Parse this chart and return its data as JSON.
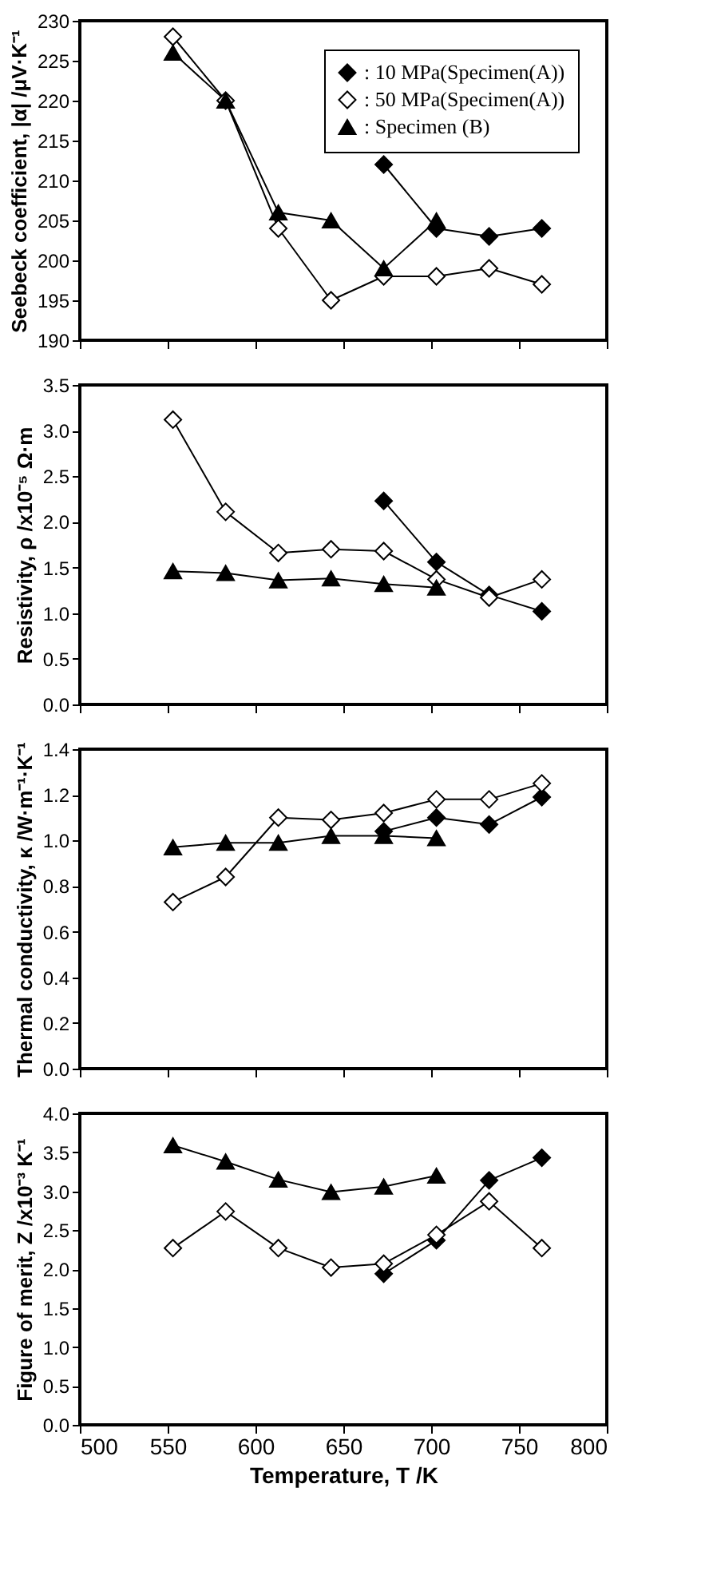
{
  "chart_data": [
    {
      "type": "line",
      "ylabel": "Seebeck coefficient, |α| /μV·K⁻¹",
      "xlim": [
        500,
        800
      ],
      "xticks": [
        500,
        550,
        600,
        650,
        700,
        750,
        800
      ],
      "ylim": [
        190,
        230
      ],
      "yticks": [
        190,
        195,
        200,
        205,
        210,
        215,
        220,
        225,
        230
      ],
      "tick_labels": "y",
      "grid": false,
      "legend": "top right",
      "line_style": "solid",
      "series": [
        {
          "name": ": 10 MPa(Specimen(A))",
          "color": "#000000",
          "marker": "diamond",
          "x": [
            673,
            703,
            733,
            763
          ],
          "values": [
            212,
            204,
            203,
            204
          ]
        },
        {
          "name": ": 50 MPa(Specimen(A))",
          "color": "#ffffff",
          "marker": "diamond",
          "x": [
            553,
            583,
            613,
            643,
            673,
            703,
            733,
            763
          ],
          "values": [
            228,
            220,
            204,
            195,
            198,
            198,
            199,
            197
          ]
        },
        {
          "name": ": Specimen (B)",
          "color": "#000000",
          "marker": "triangle",
          "x": [
            553,
            583,
            613,
            643,
            673,
            703
          ],
          "values": [
            226,
            220,
            206,
            205,
            199,
            205
          ]
        }
      ]
    },
    {
      "type": "line",
      "ylabel": "Resistivity, ρ /x10⁻⁵ Ω·m",
      "xlim": [
        500,
        800
      ],
      "xticks": [
        500,
        550,
        600,
        650,
        700,
        750,
        800
      ],
      "ylim": [
        0,
        3.5
      ],
      "yticks": [
        {
          "value": 0,
          "label": "0.0"
        },
        0.5,
        {
          "value": 1,
          "label": "1.0"
        },
        1.5,
        {
          "value": 2,
          "label": "2.0"
        },
        2.5,
        {
          "value": 3,
          "label": "3.0"
        },
        3.5
      ],
      "tick_labels": "y",
      "grid": false,
      "legend": false,
      "line_style": "solid",
      "series": [
        {
          "color": "#000000",
          "marker": "diamond",
          "x": [
            673,
            703,
            733,
            763
          ],
          "values": [
            2.23,
            1.56,
            1.2,
            1.02
          ]
        },
        {
          "color": "#ffffff",
          "marker": "diamond",
          "x": [
            553,
            583,
            613,
            643,
            673,
            703,
            733,
            763
          ],
          "values": [
            3.12,
            2.11,
            1.66,
            1.7,
            1.68,
            1.37,
            1.17,
            1.37
          ]
        },
        {
          "color": "#000000",
          "marker": "triangle",
          "x": [
            553,
            583,
            613,
            643,
            673,
            703
          ],
          "values": [
            1.46,
            1.44,
            1.36,
            1.38,
            1.32,
            1.28
          ]
        }
      ]
    },
    {
      "type": "line",
      "ylabel": "Thermal conductivity, κ /W·m⁻¹·K⁻¹",
      "xlim": [
        500,
        800
      ],
      "xticks": [
        500,
        550,
        600,
        650,
        700,
        750,
        800
      ],
      "ylim": [
        0,
        1.4
      ],
      "yticks": [
        {
          "value": 0,
          "label": "0.0"
        },
        0.2,
        0.4,
        0.6,
        0.8,
        {
          "value": 1,
          "label": "1.0"
        },
        1.2,
        1.4
      ],
      "tick_labels": "y",
      "grid": false,
      "legend": false,
      "line_style": "solid",
      "series": [
        {
          "color": "#000000",
          "marker": "diamond",
          "x": [
            673,
            703,
            733,
            763
          ],
          "values": [
            1.04,
            1.1,
            1.07,
            1.19
          ]
        },
        {
          "color": "#ffffff",
          "marker": "diamond",
          "x": [
            553,
            583,
            613,
            643,
            673,
            703,
            733,
            763
          ],
          "values": [
            0.73,
            0.84,
            1.1,
            1.09,
            1.12,
            1.18,
            1.18,
            1.25
          ]
        },
        {
          "color": "#000000",
          "marker": "triangle",
          "x": [
            553,
            583,
            613,
            643,
            673,
            703
          ],
          "values": [
            0.97,
            0.99,
            0.99,
            1.02,
            1.02,
            1.01
          ]
        }
      ]
    },
    {
      "type": "line",
      "ylabel": "Figure of merit, Z /x10⁻³ K⁻¹",
      "xlabel": "Temperature, T /K",
      "xlim": [
        500,
        800
      ],
      "xticks": [
        500,
        550,
        600,
        650,
        700,
        750,
        800
      ],
      "ylim": [
        0,
        4
      ],
      "yticks": [
        {
          "value": 0,
          "label": "0.0"
        },
        0.5,
        {
          "value": 1,
          "label": "1.0"
        },
        1.5,
        {
          "value": 2,
          "label": "2.0"
        },
        2.5,
        {
          "value": 3,
          "label": "3.0"
        },
        3.5,
        {
          "value": 4,
          "label": "4.0"
        }
      ],
      "grid": false,
      "legend": false,
      "line_style": "solid",
      "series": [
        {
          "color": "#000000",
          "marker": "diamond",
          "x": [
            673,
            703,
            733,
            763
          ],
          "values": [
            1.94,
            2.37,
            3.14,
            3.43
          ]
        },
        {
          "color": "#ffffff",
          "marker": "diamond",
          "x": [
            553,
            583,
            613,
            643,
            673,
            703,
            733,
            763
          ],
          "values": [
            2.27,
            2.74,
            2.27,
            2.02,
            2.07,
            2.44,
            2.87,
            2.27
          ]
        },
        {
          "color": "#000000",
          "marker": "triangle",
          "x": [
            553,
            583,
            613,
            643,
            673,
            703
          ],
          "values": [
            3.59,
            3.38,
            3.15,
            2.99,
            3.06,
            3.2
          ]
        }
      ]
    }
  ]
}
